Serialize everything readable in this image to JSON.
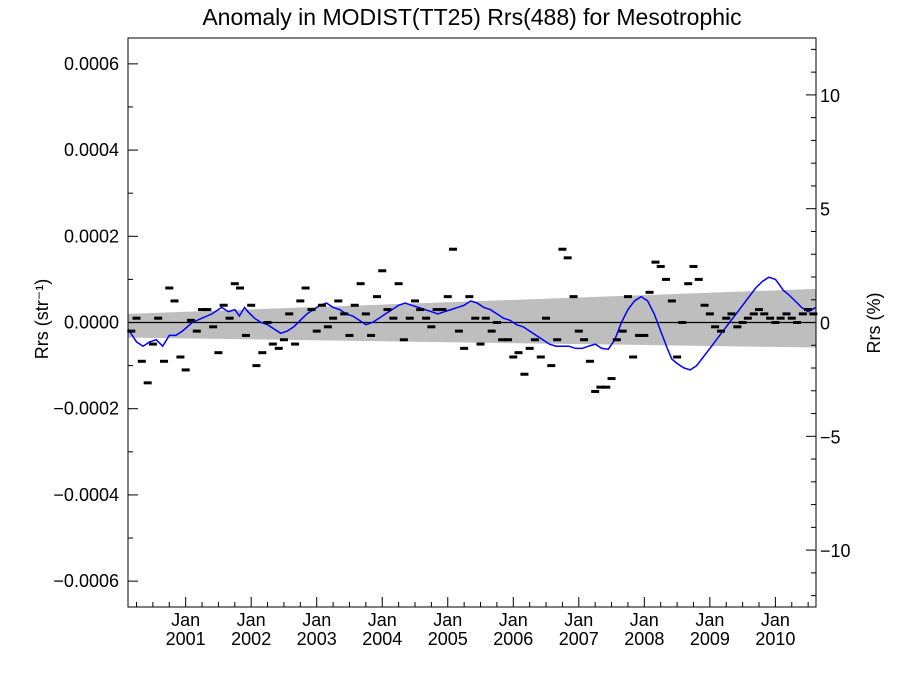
{
  "chart_data": {
    "type": "scatter",
    "title": "Anomaly in MODIST(TT25) Rrs(488) for Mesotrophic",
    "ylabel_left": "Rrs (str⁻¹)",
    "ylabel_right": "Rrs (%)",
    "xlim": [
      2000.12,
      2010.62
    ],
    "ylim": [
      -0.00066,
      0.00066
    ],
    "y2lim": [
      -12.5,
      12.5
    ],
    "x_ticks": [
      {
        "x": 2001.0,
        "month": "Jan",
        "year": "2001"
      },
      {
        "x": 2002.0,
        "month": "Jan",
        "year": "2002"
      },
      {
        "x": 2003.0,
        "month": "Jan",
        "year": "2003"
      },
      {
        "x": 2004.0,
        "month": "Jan",
        "year": "2004"
      },
      {
        "x": 2005.0,
        "month": "Jan",
        "year": "2005"
      },
      {
        "x": 2006.0,
        "month": "Jan",
        "year": "2006"
      },
      {
        "x": 2007.0,
        "month": "Jan",
        "year": "2007"
      },
      {
        "x": 2008.0,
        "month": "Jan",
        "year": "2008"
      },
      {
        "x": 2009.0,
        "month": "Jan",
        "year": "2009"
      },
      {
        "x": 2010.0,
        "month": "Jan",
        "year": "2010"
      }
    ],
    "y_ticks_left": [
      {
        "value": 0.0006,
        "label": "0.0006"
      },
      {
        "value": 0.0004,
        "label": "0.0004"
      },
      {
        "value": 0.0002,
        "label": "0.0002"
      },
      {
        "value": 0.0,
        "label": "0.0000"
      },
      {
        "value": -0.0002,
        "label": "−0.0002"
      },
      {
        "value": -0.0004,
        "label": "−0.0004"
      },
      {
        "value": -0.0006,
        "label": "−0.0006"
      }
    ],
    "y_ticks_right": [
      {
        "value": 10,
        "label": "10"
      },
      {
        "value": 5,
        "label": "5"
      },
      {
        "value": 0,
        "label": "0"
      },
      {
        "value": -5,
        "label": "−5"
      },
      {
        "value": -10,
        "label": "−10"
      }
    ],
    "confidence_band": {
      "x": [
        2000.12,
        2010.62
      ],
      "upper": [
        2e-05,
        7.8e-05
      ],
      "lower": [
        -3.5e-05,
        -5.8e-05
      ],
      "color": "#bebebe"
    },
    "zero_line": 0,
    "series": [
      {
        "type": "scatter",
        "marker": "dash",
        "color": "#000000",
        "x": [
          2000.17,
          2000.25,
          2000.33,
          2000.42,
          2000.5,
          2000.58,
          2000.67,
          2000.75,
          2000.83,
          2000.92,
          2001.0,
          2001.08,
          2001.17,
          2001.25,
          2001.33,
          2001.42,
          2001.5,
          2001.58,
          2001.67,
          2001.75,
          2001.83,
          2001.92,
          2002.0,
          2002.08,
          2002.17,
          2002.25,
          2002.33,
          2002.42,
          2002.5,
          2002.58,
          2002.67,
          2002.75,
          2002.83,
          2002.92,
          2003.0,
          2003.08,
          2003.17,
          2003.25,
          2003.33,
          2003.42,
          2003.5,
          2003.58,
          2003.67,
          2003.75,
          2003.83,
          2003.92,
          2004.0,
          2004.08,
          2004.17,
          2004.25,
          2004.33,
          2004.42,
          2004.5,
          2004.58,
          2004.67,
          2004.75,
          2004.83,
          2004.92,
          2005.0,
          2005.08,
          2005.17,
          2005.25,
          2005.33,
          2005.42,
          2005.5,
          2005.58,
          2005.67,
          2005.75,
          2005.83,
          2005.92,
          2006.0,
          2006.08,
          2006.17,
          2006.25,
          2006.33,
          2006.42,
          2006.5,
          2006.58,
          2006.67,
          2006.75,
          2006.83,
          2006.92,
          2007.0,
          2007.08,
          2007.17,
          2007.25,
          2007.33,
          2007.42,
          2007.5,
          2007.58,
          2007.67,
          2007.75,
          2007.83,
          2007.92,
          2008.0,
          2008.08,
          2008.17,
          2008.25,
          2008.33,
          2008.42,
          2008.5,
          2008.58,
          2008.67,
          2008.75,
          2008.83,
          2008.92,
          2009.0,
          2009.08,
          2009.17,
          2009.25,
          2009.33,
          2009.42,
          2009.5,
          2009.58,
          2009.67,
          2009.75,
          2009.83,
          2009.92,
          2010.0,
          2010.08,
          2010.17,
          2010.25,
          2010.33,
          2010.42,
          2010.5,
          2010.58
        ],
        "y": [
          -2e-05,
          1e-05,
          -9e-05,
          -0.00014,
          -5e-05,
          1e-05,
          -9e-05,
          8e-05,
          5e-05,
          -8e-05,
          -0.00011,
          5e-06,
          -2e-05,
          3e-05,
          3e-05,
          -1e-05,
          -7e-05,
          4e-05,
          1e-05,
          9e-05,
          8e-05,
          -3e-05,
          4e-05,
          -0.0001,
          -7e-05,
          0.0,
          -5e-05,
          -6e-05,
          -4e-05,
          2e-05,
          -5e-05,
          5e-05,
          8e-05,
          3e-05,
          -2e-05,
          4e-05,
          -1e-05,
          1e-05,
          5e-05,
          2e-05,
          -3e-05,
          4e-05,
          9e-05,
          2e-05,
          -3e-05,
          6e-05,
          0.00012,
          3e-05,
          1e-05,
          9e-05,
          -4e-05,
          1e-05,
          5e-05,
          3e-05,
          1e-05,
          -1e-05,
          3e-05,
          3e-05,
          6e-05,
          0.00017,
          -2e-05,
          -6e-05,
          6e-05,
          1e-05,
          -5e-05,
          1e-05,
          -2e-05,
          0.0,
          -4e-05,
          -4e-05,
          -8e-05,
          -7e-05,
          -0.00012,
          -6e-05,
          -4e-05,
          -8e-05,
          1e-05,
          -0.0001,
          -4e-05,
          0.00017,
          0.00015,
          6e-05,
          -2e-05,
          -4e-05,
          -9e-05,
          -0.00016,
          -0.00015,
          -0.00015,
          -0.00013,
          -4e-05,
          -2e-05,
          6e-05,
          -8e-05,
          -3e-05,
          -3e-05,
          7e-05,
          0.00014,
          0.00013,
          0.0001,
          5e-05,
          -8e-05,
          0.0,
          9e-05,
          0.00013,
          0.0001,
          4e-05,
          2e-05,
          -1e-05,
          -2e-05,
          1e-05,
          2e-05,
          -1e-05,
          0.0,
          1e-05,
          2e-05,
          3e-05,
          2e-05,
          1e-05,
          0.0,
          1e-05,
          2e-05,
          1e-05,
          0.0,
          2e-05,
          3e-05,
          2e-05
        ]
      },
      {
        "type": "line",
        "color": "#0000ff",
        "x": [
          2000.12,
          2000.25,
          2000.35,
          2000.45,
          2000.55,
          2000.65,
          2000.75,
          2000.85,
          2000.95,
          2001.1,
          2001.25,
          2001.4,
          2001.55,
          2001.65,
          2001.75,
          2001.82,
          2001.9,
          2001.95,
          2002.05,
          2002.15,
          2002.25,
          2002.35,
          2002.45,
          2002.55,
          2002.65,
          2002.75,
          2002.85,
          2002.95,
          2003.05,
          2003.15,
          2003.25,
          2003.35,
          2003.45,
          2003.55,
          2003.65,
          2003.75,
          2003.85,
          2003.95,
          2004.05,
          2004.15,
          2004.25,
          2004.35,
          2004.45,
          2004.55,
          2004.65,
          2004.75,
          2004.85,
          2004.95,
          2005.05,
          2005.15,
          2005.25,
          2005.35,
          2005.45,
          2005.55,
          2005.65,
          2005.75,
          2005.85,
          2005.95,
          2006.05,
          2006.15,
          2006.25,
          2006.35,
          2006.45,
          2006.55,
          2006.65,
          2006.75,
          2006.85,
          2006.95,
          2007.05,
          2007.15,
          2007.25,
          2007.35,
          2007.45,
          2007.55,
          2007.65,
          2007.75,
          2007.85,
          2007.95,
          2008.05,
          2008.15,
          2008.25,
          2008.35,
          2008.42,
          2008.5,
          2008.6,
          2008.7,
          2008.8,
          2008.9,
          2009.0,
          2009.1,
          2009.2,
          2009.3,
          2009.4,
          2009.5,
          2009.6,
          2009.7,
          2009.8,
          2009.9,
          2010.0,
          2010.05,
          2010.12,
          2010.2,
          2010.3,
          2010.4,
          2010.5,
          2010.62
        ],
        "y": [
          -1.5e-05,
          -4.5e-05,
          -5.5e-05,
          -4.5e-05,
          -4e-05,
          -5.5e-05,
          -3e-05,
          -3e-05,
          -2e-05,
          0.0,
          1e-05,
          2e-05,
          3.5e-05,
          2.5e-05,
          3e-05,
          1.5e-05,
          3.5e-05,
          2.5e-05,
          1e-05,
          0.0,
          -5e-06,
          -1.5e-05,
          -2.5e-05,
          -2e-05,
          -1e-05,
          5e-06,
          2e-05,
          3e-05,
          4e-05,
          4.5e-05,
          3.5e-05,
          3e-05,
          2e-05,
          1.5e-05,
          5e-06,
          -5e-06,
          0.0,
          1e-05,
          2e-05,
          3e-05,
          4e-05,
          4.5e-05,
          4e-05,
          3.5e-05,
          3e-05,
          2.5e-05,
          2e-05,
          2.5e-05,
          3e-05,
          3.5e-05,
          4e-05,
          5e-05,
          4.5e-05,
          3.5e-05,
          3e-05,
          2e-05,
          1e-05,
          5e-06,
          -5e-06,
          -1e-05,
          -2e-05,
          -3e-05,
          -4e-05,
          -5e-05,
          -5.5e-05,
          -5.5e-05,
          -5.5e-05,
          -6e-05,
          -6e-05,
          -5.5e-05,
          -5e-05,
          -6e-05,
          -6.2e-05,
          -4e-05,
          0.0,
          3e-05,
          5e-05,
          6e-05,
          5e-05,
          2e-05,
          -2e-05,
          -6e-05,
          -8.5e-05,
          -9.5e-05,
          -0.000105,
          -0.00011,
          -0.0001,
          -8e-05,
          -6e-05,
          -4e-05,
          -2e-05,
          0.0,
          2e-05,
          4e-05,
          6e-05,
          8e-05,
          9.5e-05,
          0.000105,
          0.0001,
          9e-05,
          7.5e-05,
          6.5e-05,
          5e-05,
          3.5e-05,
          2.5e-05,
          3.5e-05
        ]
      }
    ]
  }
}
